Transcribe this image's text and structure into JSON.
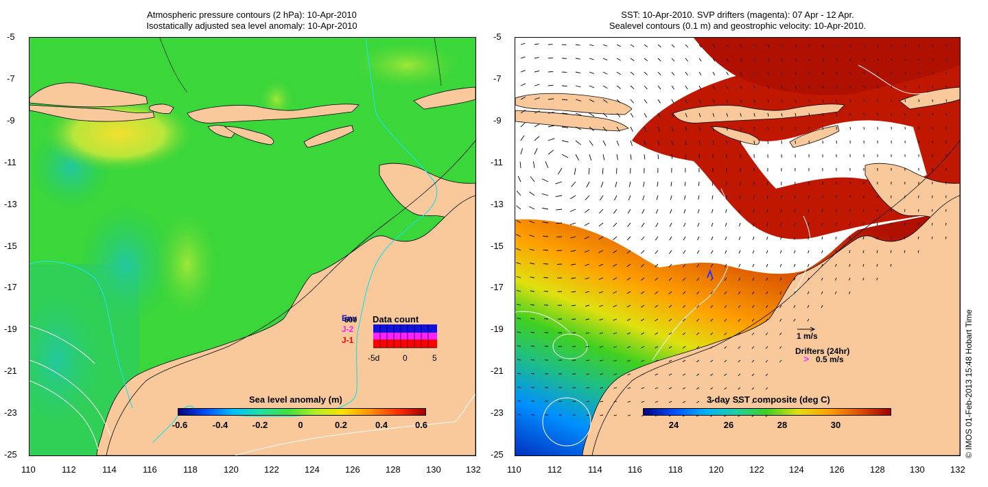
{
  "left_panel": {
    "title_line1": "Atmospheric pressure contours (2 hPa): 10-Apr-2010",
    "title_line2": "Isostatically adjusted sea level anomaly: 10-Apr-2010",
    "y_ticks": [
      "-5",
      "-7",
      "-9",
      "-11",
      "-13",
      "-15",
      "-17",
      "-19",
      "-21",
      "-23",
      "-25"
    ],
    "x_ticks": [
      "110",
      "112",
      "114",
      "116",
      "118",
      "120",
      "122",
      "124",
      "126",
      "128",
      "130",
      "132"
    ],
    "colorbar": {
      "title": "Sea level anomaly (m)",
      "labels": [
        "-0.6",
        "-0.4",
        "-0.2",
        "0",
        "0.2",
        "0.4",
        "0.6"
      ]
    },
    "inset": {
      "title": "Data count",
      "series_labels": [
        "Env",
        "J-2",
        "J-1"
      ],
      "series_colors": [
        "#1010e0",
        "#ff20ff",
        "#ff0000"
      ],
      "y_label": "500",
      "x_labels": [
        "-5d",
        "0",
        "5"
      ]
    }
  },
  "right_panel": {
    "title_line1": "SST: 10-Apr-2010. SVP drifters (magenta): 07 Apr - 12 Apr.",
    "title_line2": "Sealevel contours (0.1 m) and geostrophic velocity: 10-Apr-2010.",
    "y_ticks": [
      "-5",
      "-7",
      "-9",
      "-11",
      "-13",
      "-15",
      "-17",
      "-19",
      "-21",
      "-23",
      "-25"
    ],
    "x_ticks": [
      "110",
      "112",
      "114",
      "116",
      "118",
      "120",
      "122",
      "124",
      "126",
      "128",
      "130",
      "132"
    ],
    "colorbar": {
      "title": "3-day SST composite (deg C)",
      "labels": [
        "24",
        "26",
        "28",
        "30"
      ]
    },
    "vector_legend": {
      "scale_label": "1 m/s",
      "drifters_label": "Drifters (24hr)",
      "drifter_speed_label": "0.5 m/s"
    }
  },
  "copyright": "© IMOS 01-Feb-2013 15:48 Hobart Time",
  "colors": {
    "land": "#f9c89b",
    "ocean_green": "#2bd63a",
    "contour_cyan": "#20e0e0",
    "magenta": "#ff33ff"
  }
}
